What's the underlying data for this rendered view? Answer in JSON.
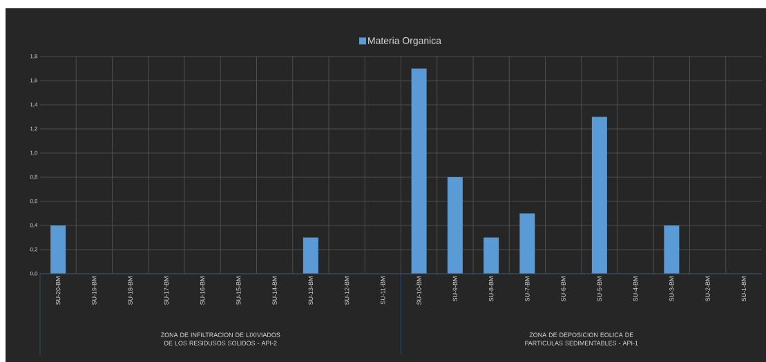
{
  "chart_data": {
    "type": "bar",
    "categories": [
      "SU-20-BM",
      "SU-19-BM",
      "SU-18-BM",
      "SU-17-BM",
      "SU-16-BM",
      "SU-15-BM",
      "SU-14-BM",
      "SU-13-BM",
      "SU-12-BM",
      "SU-11-BM",
      "SU-10-BM",
      "SU-9-BM",
      "SU-8-BM",
      "SU-7-BM",
      "SU-6-BM",
      "SU-5-BM",
      "SU-4-BM",
      "SU-3-BM",
      "SU-2-BM",
      "SU-1-BM"
    ],
    "series": [
      {
        "name": "Materia Organica",
        "color": "#5b9bd5",
        "values": [
          0.4,
          0,
          0,
          0,
          0,
          0,
          0,
          0.3,
          0,
          0,
          1.7,
          0.8,
          0.3,
          0.5,
          0,
          1.3,
          0,
          0.4,
          0,
          0
        ]
      }
    ],
    "ylim": [
      0,
      1.8
    ],
    "yticks": [
      {
        "value": 0,
        "label": "0,0"
      },
      {
        "value": 0.2,
        "label": "0,2"
      },
      {
        "value": 0.4,
        "label": "0,4"
      },
      {
        "value": 0.6,
        "label": "0,6"
      },
      {
        "value": 0.8,
        "label": "0,8"
      },
      {
        "value": 1.0,
        "label": "1,0"
      },
      {
        "value": 1.2,
        "label": "1,2"
      },
      {
        "value": 1.4,
        "label": "1,4"
      },
      {
        "value": 1.6,
        "label": "1,6"
      },
      {
        "value": 1.8,
        "label": "1,8"
      }
    ],
    "grid": true,
    "legend": "top",
    "annotations": [
      "ZONA DE INFILTRACION DE LIXIVIADOS DE LOS RESIDUSOS SOLIDOS - API-2",
      "ZONA DE DEPOSICION EOLICA DE PARTICULAS SEDIMENTABLES - API-1"
    ]
  }
}
